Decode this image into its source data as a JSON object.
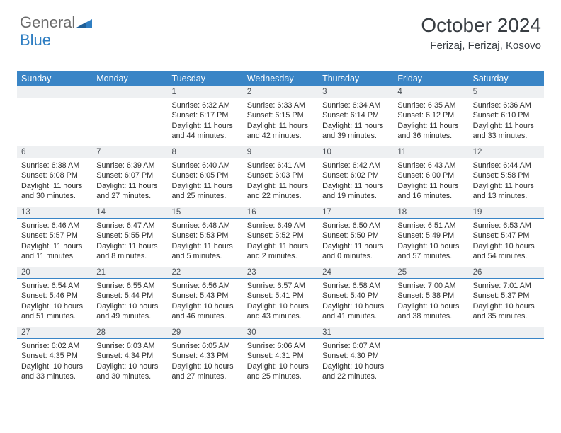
{
  "logo": {
    "line1": "General",
    "line2": "Blue"
  },
  "title": "October 2024",
  "subtitle": "Ferizaj, Ferizaj, Kosovo",
  "colors": {
    "header_bg": "#3a85c6",
    "header_text": "#ffffff",
    "daynum_bg": "#eef0f2",
    "daynum_border": "#3a85c6",
    "body_text": "#2d2d2d",
    "title_text": "#383d42",
    "logo_gray": "#6b6b6b",
    "logo_blue": "#2f7ec2",
    "page_bg": "#ffffff"
  },
  "day_names": [
    "Sunday",
    "Monday",
    "Tuesday",
    "Wednesday",
    "Thursday",
    "Friday",
    "Saturday"
  ],
  "weeks": [
    [
      {
        "n": "",
        "sr": "",
        "ss": "",
        "dl": ""
      },
      {
        "n": "",
        "sr": "",
        "ss": "",
        "dl": ""
      },
      {
        "n": "1",
        "sr": "Sunrise: 6:32 AM",
        "ss": "Sunset: 6:17 PM",
        "dl": "Daylight: 11 hours and 44 minutes."
      },
      {
        "n": "2",
        "sr": "Sunrise: 6:33 AM",
        "ss": "Sunset: 6:15 PM",
        "dl": "Daylight: 11 hours and 42 minutes."
      },
      {
        "n": "3",
        "sr": "Sunrise: 6:34 AM",
        "ss": "Sunset: 6:14 PM",
        "dl": "Daylight: 11 hours and 39 minutes."
      },
      {
        "n": "4",
        "sr": "Sunrise: 6:35 AM",
        "ss": "Sunset: 6:12 PM",
        "dl": "Daylight: 11 hours and 36 minutes."
      },
      {
        "n": "5",
        "sr": "Sunrise: 6:36 AM",
        "ss": "Sunset: 6:10 PM",
        "dl": "Daylight: 11 hours and 33 minutes."
      }
    ],
    [
      {
        "n": "6",
        "sr": "Sunrise: 6:38 AM",
        "ss": "Sunset: 6:08 PM",
        "dl": "Daylight: 11 hours and 30 minutes."
      },
      {
        "n": "7",
        "sr": "Sunrise: 6:39 AM",
        "ss": "Sunset: 6:07 PM",
        "dl": "Daylight: 11 hours and 27 minutes."
      },
      {
        "n": "8",
        "sr": "Sunrise: 6:40 AM",
        "ss": "Sunset: 6:05 PM",
        "dl": "Daylight: 11 hours and 25 minutes."
      },
      {
        "n": "9",
        "sr": "Sunrise: 6:41 AM",
        "ss": "Sunset: 6:03 PM",
        "dl": "Daylight: 11 hours and 22 minutes."
      },
      {
        "n": "10",
        "sr": "Sunrise: 6:42 AM",
        "ss": "Sunset: 6:02 PM",
        "dl": "Daylight: 11 hours and 19 minutes."
      },
      {
        "n": "11",
        "sr": "Sunrise: 6:43 AM",
        "ss": "Sunset: 6:00 PM",
        "dl": "Daylight: 11 hours and 16 minutes."
      },
      {
        "n": "12",
        "sr": "Sunrise: 6:44 AM",
        "ss": "Sunset: 5:58 PM",
        "dl": "Daylight: 11 hours and 13 minutes."
      }
    ],
    [
      {
        "n": "13",
        "sr": "Sunrise: 6:46 AM",
        "ss": "Sunset: 5:57 PM",
        "dl": "Daylight: 11 hours and 11 minutes."
      },
      {
        "n": "14",
        "sr": "Sunrise: 6:47 AM",
        "ss": "Sunset: 5:55 PM",
        "dl": "Daylight: 11 hours and 8 minutes."
      },
      {
        "n": "15",
        "sr": "Sunrise: 6:48 AM",
        "ss": "Sunset: 5:53 PM",
        "dl": "Daylight: 11 hours and 5 minutes."
      },
      {
        "n": "16",
        "sr": "Sunrise: 6:49 AM",
        "ss": "Sunset: 5:52 PM",
        "dl": "Daylight: 11 hours and 2 minutes."
      },
      {
        "n": "17",
        "sr": "Sunrise: 6:50 AM",
        "ss": "Sunset: 5:50 PM",
        "dl": "Daylight: 11 hours and 0 minutes."
      },
      {
        "n": "18",
        "sr": "Sunrise: 6:51 AM",
        "ss": "Sunset: 5:49 PM",
        "dl": "Daylight: 10 hours and 57 minutes."
      },
      {
        "n": "19",
        "sr": "Sunrise: 6:53 AM",
        "ss": "Sunset: 5:47 PM",
        "dl": "Daylight: 10 hours and 54 minutes."
      }
    ],
    [
      {
        "n": "20",
        "sr": "Sunrise: 6:54 AM",
        "ss": "Sunset: 5:46 PM",
        "dl": "Daylight: 10 hours and 51 minutes."
      },
      {
        "n": "21",
        "sr": "Sunrise: 6:55 AM",
        "ss": "Sunset: 5:44 PM",
        "dl": "Daylight: 10 hours and 49 minutes."
      },
      {
        "n": "22",
        "sr": "Sunrise: 6:56 AM",
        "ss": "Sunset: 5:43 PM",
        "dl": "Daylight: 10 hours and 46 minutes."
      },
      {
        "n": "23",
        "sr": "Sunrise: 6:57 AM",
        "ss": "Sunset: 5:41 PM",
        "dl": "Daylight: 10 hours and 43 minutes."
      },
      {
        "n": "24",
        "sr": "Sunrise: 6:58 AM",
        "ss": "Sunset: 5:40 PM",
        "dl": "Daylight: 10 hours and 41 minutes."
      },
      {
        "n": "25",
        "sr": "Sunrise: 7:00 AM",
        "ss": "Sunset: 5:38 PM",
        "dl": "Daylight: 10 hours and 38 minutes."
      },
      {
        "n": "26",
        "sr": "Sunrise: 7:01 AM",
        "ss": "Sunset: 5:37 PM",
        "dl": "Daylight: 10 hours and 35 minutes."
      }
    ],
    [
      {
        "n": "27",
        "sr": "Sunrise: 6:02 AM",
        "ss": "Sunset: 4:35 PM",
        "dl": "Daylight: 10 hours and 33 minutes."
      },
      {
        "n": "28",
        "sr": "Sunrise: 6:03 AM",
        "ss": "Sunset: 4:34 PM",
        "dl": "Daylight: 10 hours and 30 minutes."
      },
      {
        "n": "29",
        "sr": "Sunrise: 6:05 AM",
        "ss": "Sunset: 4:33 PM",
        "dl": "Daylight: 10 hours and 27 minutes."
      },
      {
        "n": "30",
        "sr": "Sunrise: 6:06 AM",
        "ss": "Sunset: 4:31 PM",
        "dl": "Daylight: 10 hours and 25 minutes."
      },
      {
        "n": "31",
        "sr": "Sunrise: 6:07 AM",
        "ss": "Sunset: 4:30 PM",
        "dl": "Daylight: 10 hours and 22 minutes."
      },
      {
        "n": "",
        "sr": "",
        "ss": "",
        "dl": ""
      },
      {
        "n": "",
        "sr": "",
        "ss": "",
        "dl": ""
      }
    ]
  ]
}
